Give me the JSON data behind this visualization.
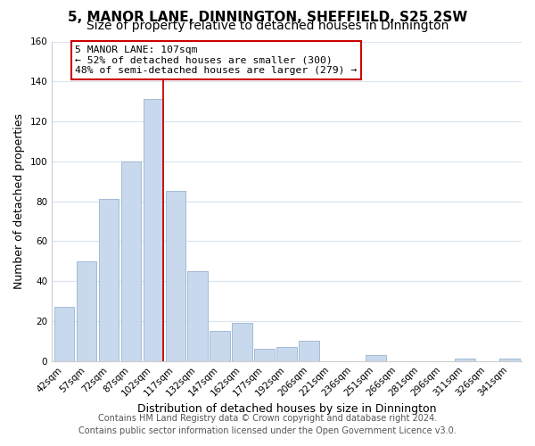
{
  "title": "5, MANOR LANE, DINNINGTON, SHEFFIELD, S25 2SW",
  "subtitle": "Size of property relative to detached houses in Dinnington",
  "xlabel": "Distribution of detached houses by size in Dinnington",
  "ylabel": "Number of detached properties",
  "bar_labels": [
    "42sqm",
    "57sqm",
    "72sqm",
    "87sqm",
    "102sqm",
    "117sqm",
    "132sqm",
    "147sqm",
    "162sqm",
    "177sqm",
    "192sqm",
    "206sqm",
    "221sqm",
    "236sqm",
    "251sqm",
    "266sqm",
    "281sqm",
    "296sqm",
    "311sqm",
    "326sqm",
    "341sqm"
  ],
  "bar_values": [
    27,
    50,
    81,
    100,
    131,
    85,
    45,
    15,
    19,
    6,
    7,
    10,
    0,
    0,
    3,
    0,
    0,
    0,
    1,
    0,
    1
  ],
  "bar_color": "#c8d9ed",
  "bar_edge_color": "#9ab4cf",
  "highlight_line_color": "#cc0000",
  "highlight_line_index": 4,
  "ylim": [
    0,
    160
  ],
  "yticks": [
    0,
    20,
    40,
    60,
    80,
    100,
    120,
    140,
    160
  ],
  "annotation_box_text": "5 MANOR LANE: 107sqm\n← 52% of detached houses are smaller (300)\n48% of semi-detached houses are larger (279) →",
  "annotation_box_edge_color": "#cc0000",
  "annotation_box_facecolor": "white",
  "footer_line1": "Contains HM Land Registry data © Crown copyright and database right 2024.",
  "footer_line2": "Contains public sector information licensed under the Open Government Licence v3.0.",
  "plot_bg_color": "white",
  "fig_bg_color": "white",
  "grid_color": "#d8e4f0",
  "title_fontsize": 11,
  "subtitle_fontsize": 10,
  "xlabel_fontsize": 9,
  "ylabel_fontsize": 9,
  "tick_fontsize": 7.5,
  "footer_fontsize": 7
}
